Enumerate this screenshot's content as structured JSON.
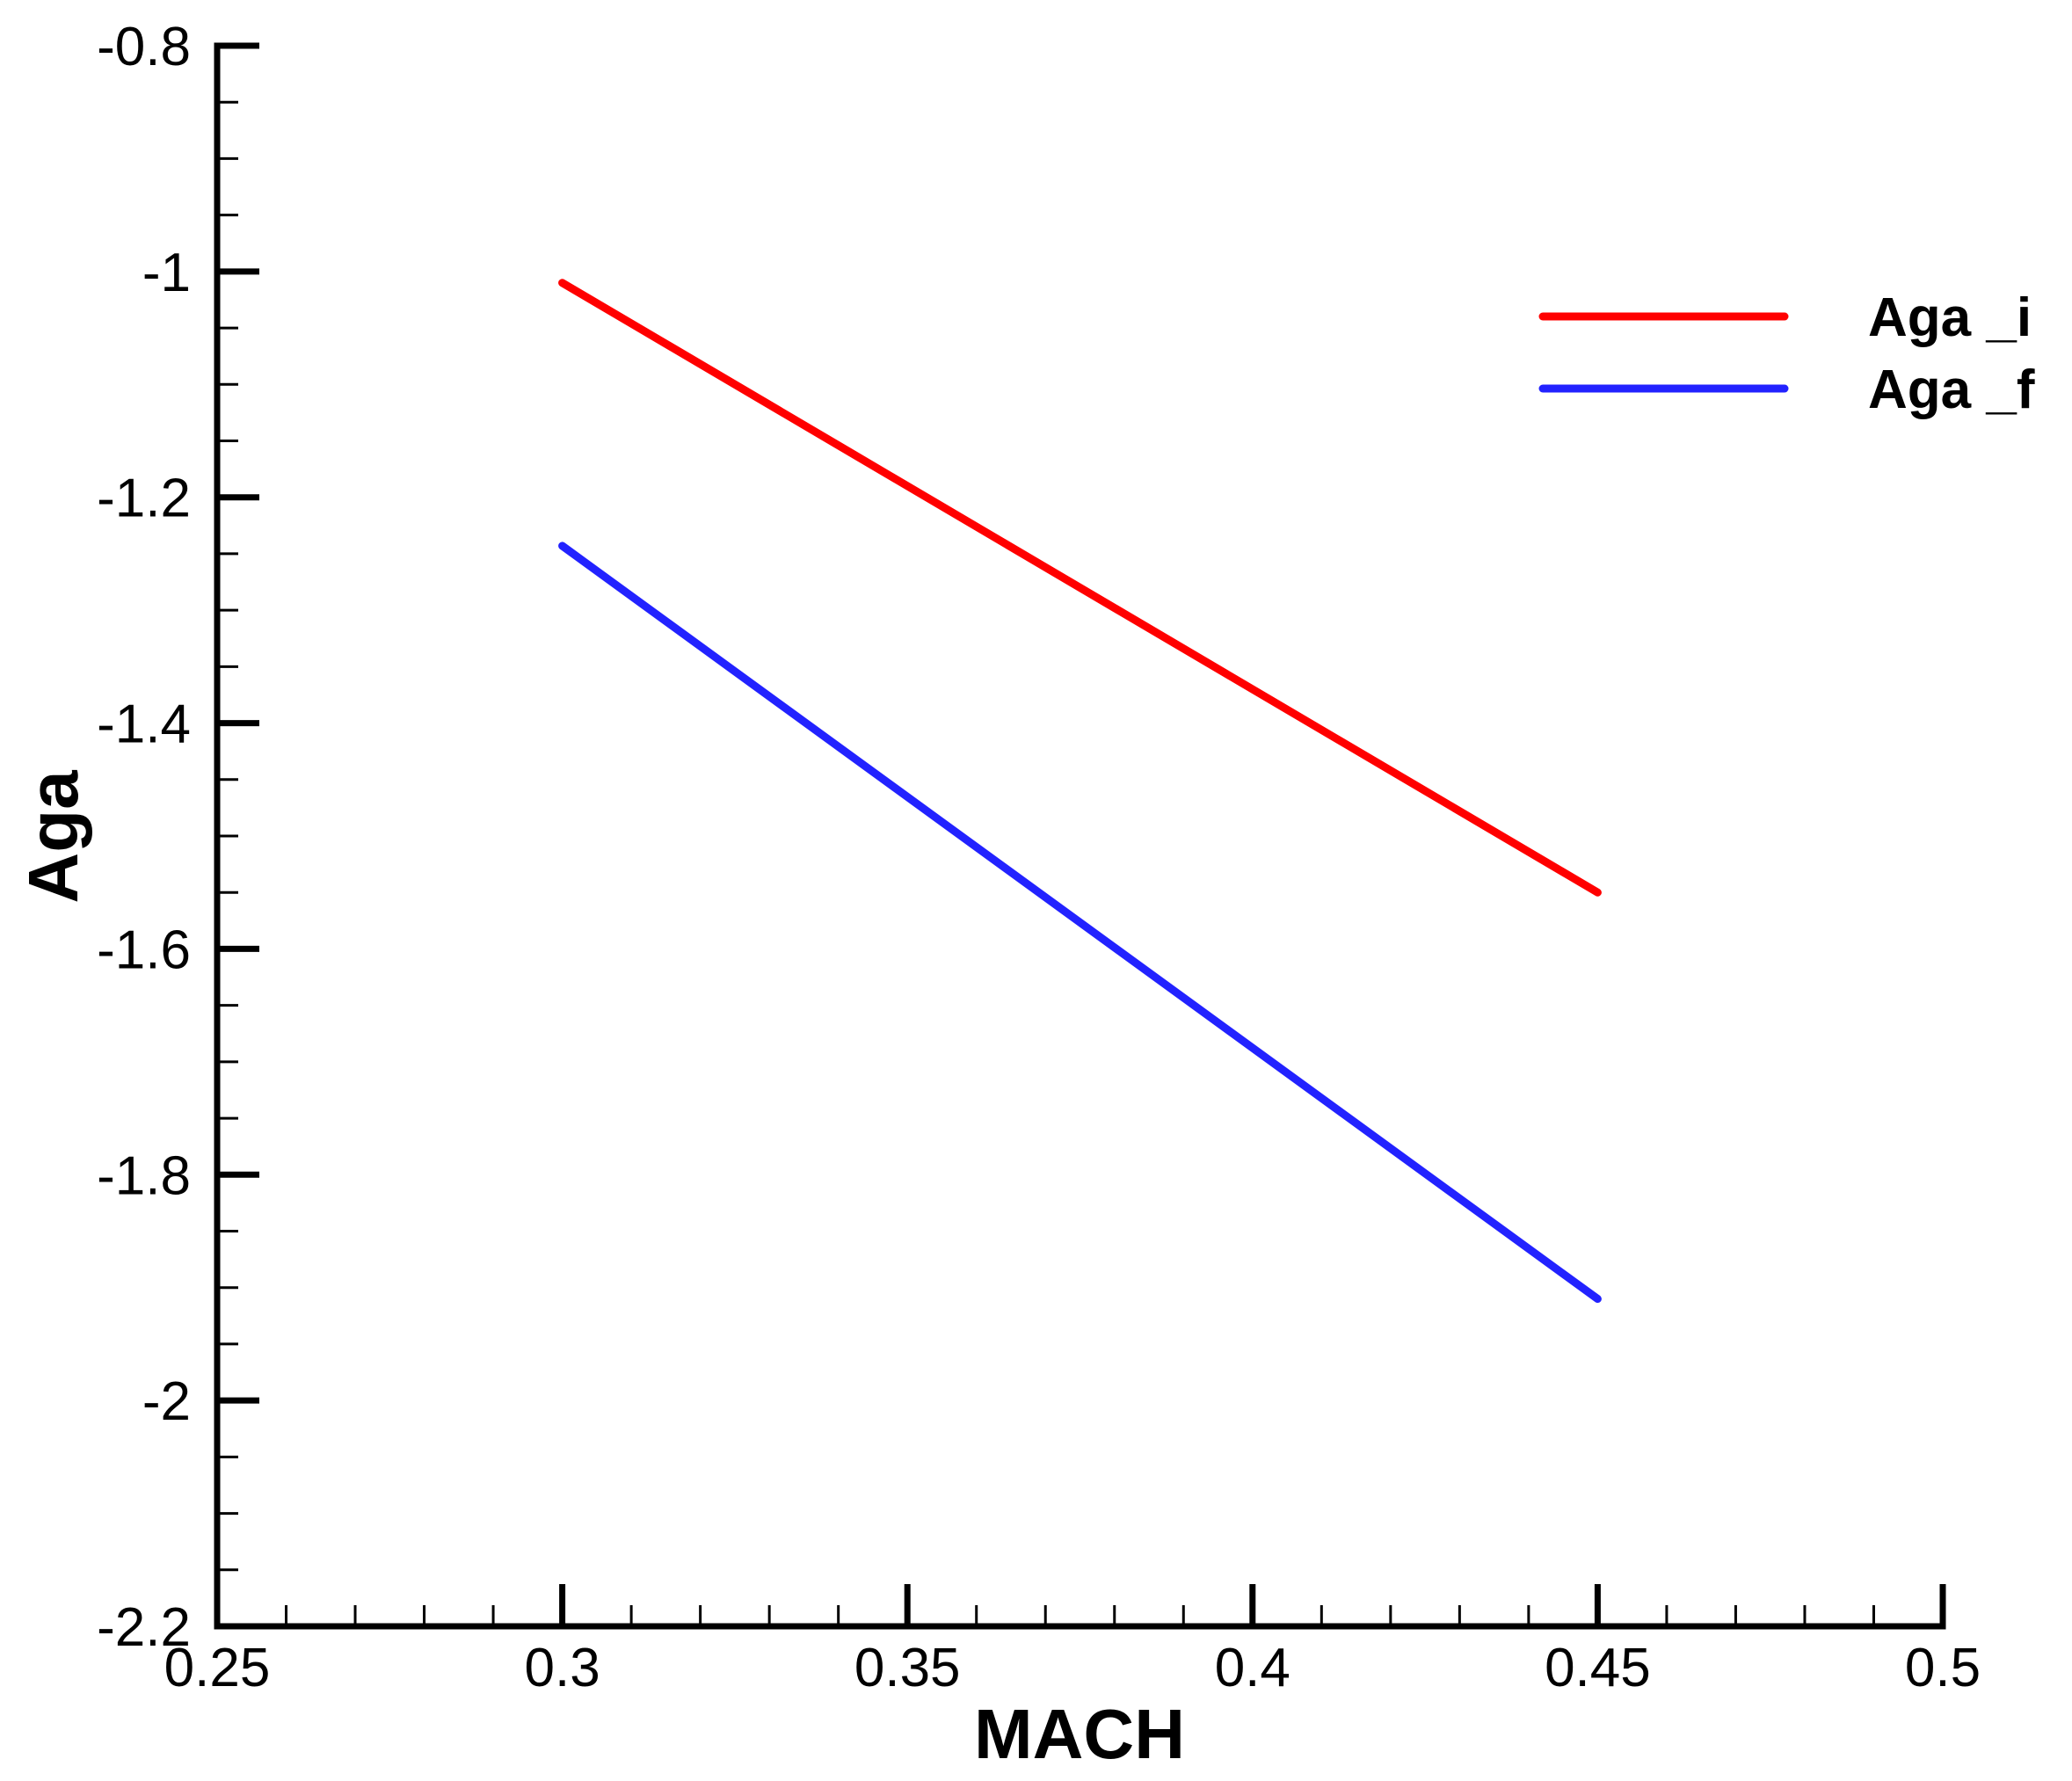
{
  "chart_data": {
    "type": "line",
    "title": "",
    "xlabel": "MACH",
    "ylabel": "Aga",
    "xlim": [
      0.25,
      0.5
    ],
    "ylim": [
      -2.2,
      -0.8
    ],
    "x_ticks": [
      0.25,
      0.3,
      0.35,
      0.4,
      0.45,
      0.5
    ],
    "x_tick_labels": [
      "0.25",
      "0.3",
      "0.35",
      "0.4",
      "0.45",
      "0.5"
    ],
    "y_ticks": [
      -0.8,
      -1,
      -1.2,
      -1.4,
      -1.6,
      -1.8,
      -2,
      -2.2
    ],
    "y_tick_labels": [
      "-0.8",
      "-1",
      "-1.2",
      "-1.4",
      "-1.6",
      "-1.8",
      "-2",
      "-2.2"
    ],
    "x_minor_step": 0.01,
    "y_minor_step": 0.05,
    "grid": false,
    "legend_position": "top-right",
    "series": [
      {
        "name": "Aga _i",
        "color": "#ff0000",
        "x": [
          0.3,
          0.45
        ],
        "y": [
          -1.01,
          -1.55
        ]
      },
      {
        "name": "Aga _f",
        "color": "#2222ff",
        "x": [
          0.3,
          0.45
        ],
        "y": [
          -1.243,
          -1.91
        ]
      }
    ]
  }
}
